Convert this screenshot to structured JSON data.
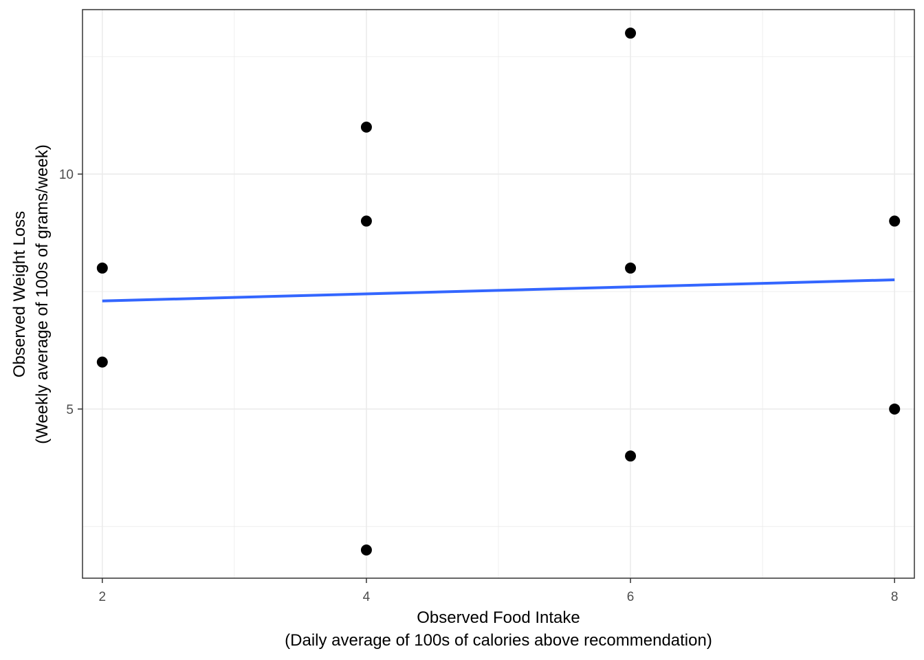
{
  "chart_data": {
    "type": "scatter",
    "title": "",
    "xlabel_line1": "Observed Food Intake",
    "xlabel_line2": "(Daily average of 100s of calories above recommendation)",
    "ylabel_line1": "Observed Weight Loss",
    "ylabel_line2": "(Weekly average of 100s of grams/week)",
    "xlim": [
      1.85,
      8.15
    ],
    "ylim": [
      1.4,
      13.5
    ],
    "x_ticks": [
      2,
      4,
      6,
      8
    ],
    "y_ticks": [
      5,
      10
    ],
    "x_minor_gridlines": [
      3,
      5,
      7
    ],
    "y_minor_gridlines": [
      2.5,
      7.5,
      12.5
    ],
    "grid": true,
    "points": [
      {
        "x": 2,
        "y": 8
      },
      {
        "x": 2,
        "y": 6
      },
      {
        "x": 4,
        "y": 11
      },
      {
        "x": 4,
        "y": 9
      },
      {
        "x": 4,
        "y": 2
      },
      {
        "x": 6,
        "y": 13
      },
      {
        "x": 6,
        "y": 8
      },
      {
        "x": 6,
        "y": 4
      },
      {
        "x": 8,
        "y": 9
      },
      {
        "x": 8,
        "y": 5
      }
    ],
    "trend_line": {
      "x": [
        2,
        8
      ],
      "y": [
        7.3,
        7.75
      ],
      "color": "#3366FF"
    },
    "point_color": "#000000",
    "panel_border_color": "#333333",
    "grid_color": "#ebebeb"
  }
}
